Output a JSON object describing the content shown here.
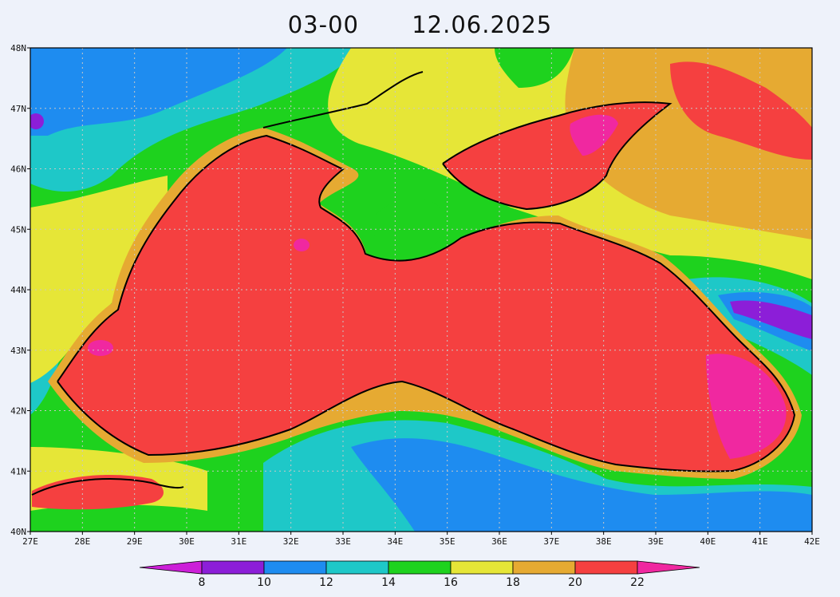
{
  "header": {
    "time": "03-00",
    "date": "12.06.2025"
  },
  "map": {
    "lat_labels": [
      "48N",
      "47N",
      "46N",
      "45N",
      "44N",
      "43N",
      "42N",
      "41N",
      "40N"
    ],
    "lon_labels": [
      "27E",
      "28E",
      "29E",
      "30E",
      "31E",
      "32E",
      "33E",
      "34E",
      "35E",
      "36E",
      "37E",
      "38E",
      "39E",
      "40E",
      "41E",
      "42E"
    ],
    "lat_range": [
      40,
      48
    ],
    "lon_range": [
      27,
      42
    ],
    "grid": true
  },
  "colorbar": {
    "labels": [
      "8",
      "10",
      "12",
      "14",
      "16",
      "18",
      "20",
      "22"
    ],
    "colors": [
      "#cc1fd8",
      "#8c1ed8",
      "#1e8cf0",
      "#1ec8c8",
      "#1ed21e",
      "#e6e637",
      "#e6aa32",
      "#f54040",
      "#f028a0"
    ]
  }
}
